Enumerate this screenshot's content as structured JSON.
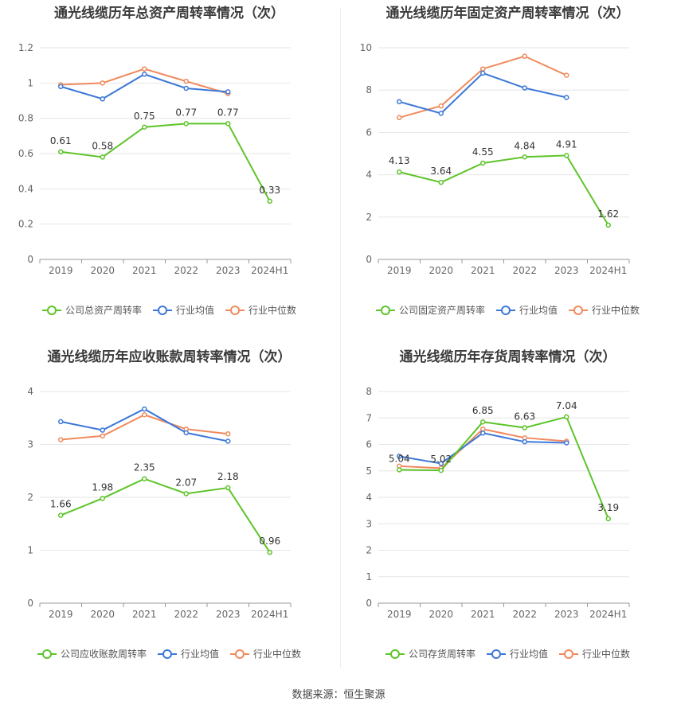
{
  "colors": {
    "company": "#5ec42a",
    "industry_avg": "#3d78d8",
    "industry_median": "#f08a5d",
    "grid": "#e6e6e6",
    "axis": "#999999",
    "label": "#333333"
  },
  "source": "数据来源：恒生聚源",
  "chart_data": [
    {
      "type": "line",
      "title": "通光线缆历年总资产周转率情况（次）",
      "categories": [
        "2019",
        "2020",
        "2021",
        "2022",
        "2023",
        "2024H1"
      ],
      "ylim": [
        0,
        1.2
      ],
      "yticks": [
        "0",
        "0.2",
        "0.4",
        "0.6",
        "0.8",
        "1",
        "1.2"
      ],
      "ytick_values": [
        0,
        0.2,
        0.4,
        0.6,
        0.8,
        1.0,
        1.2
      ],
      "grid": true,
      "legend_position": "bottom",
      "series": [
        {
          "name": "公司总资产周转率",
          "key": "company",
          "values": [
            0.61,
            0.58,
            0.75,
            0.77,
            0.77,
            0.33
          ],
          "labels": [
            "0.61",
            "0.58",
            "0.75",
            "0.77",
            "0.77",
            "0.33"
          ]
        },
        {
          "name": "行业均值",
          "key": "industry_avg",
          "values": [
            0.98,
            0.91,
            1.05,
            0.97,
            0.95,
            null
          ]
        },
        {
          "name": "行业中位数",
          "key": "industry_median",
          "values": [
            0.99,
            1.0,
            1.08,
            1.01,
            0.94,
            null
          ]
        }
      ]
    },
    {
      "type": "line",
      "title": "通光线缆历年固定资产周转率情况（次）",
      "categories": [
        "2019",
        "2020",
        "2021",
        "2022",
        "2023",
        "2024H1"
      ],
      "ylim": [
        0,
        10
      ],
      "yticks": [
        "0",
        "2",
        "4",
        "6",
        "8",
        "10"
      ],
      "ytick_values": [
        0,
        2,
        4,
        6,
        8,
        10
      ],
      "grid": true,
      "legend_position": "bottom",
      "series": [
        {
          "name": "公司固定资产周转率",
          "key": "company",
          "values": [
            4.13,
            3.64,
            4.55,
            4.84,
            4.91,
            1.62
          ],
          "labels": [
            "4.13",
            "3.64",
            "4.55",
            "4.84",
            "4.91",
            "1.62"
          ]
        },
        {
          "name": "行业均值",
          "key": "industry_avg",
          "values": [
            7.45,
            6.9,
            8.8,
            8.1,
            7.65,
            null
          ]
        },
        {
          "name": "行业中位数",
          "key": "industry_median",
          "values": [
            6.7,
            7.25,
            9.0,
            9.6,
            8.7,
            null
          ]
        }
      ]
    },
    {
      "type": "line",
      "title": "通光线缆历年应收账款周转率情况（次）",
      "categories": [
        "2019",
        "2020",
        "2021",
        "2022",
        "2023",
        "2024H1"
      ],
      "ylim": [
        0,
        4
      ],
      "yticks": [
        "0",
        "1",
        "2",
        "3",
        "4"
      ],
      "ytick_values": [
        0,
        1,
        2,
        3,
        4
      ],
      "grid": true,
      "legend_position": "bottom",
      "series": [
        {
          "name": "公司应收账款周转率",
          "key": "company",
          "values": [
            1.66,
            1.98,
            2.35,
            2.07,
            2.18,
            0.96
          ],
          "labels": [
            "1.66",
            "1.98",
            "2.35",
            "2.07",
            "2.18",
            "0.96"
          ]
        },
        {
          "name": "行业均值",
          "key": "industry_avg",
          "values": [
            3.43,
            3.27,
            3.67,
            3.22,
            3.06,
            null
          ]
        },
        {
          "name": "行业中位数",
          "key": "industry_median",
          "values": [
            3.09,
            3.16,
            3.56,
            3.29,
            3.2,
            null
          ]
        }
      ]
    },
    {
      "type": "line",
      "title": "通光线缆历年存货周转率情况（次）",
      "categories": [
        "2019",
        "2020",
        "2021",
        "2022",
        "2023",
        "2024H1"
      ],
      "ylim": [
        0,
        8
      ],
      "yticks": [
        "0",
        "1",
        "2",
        "3",
        "4",
        "5",
        "6",
        "7",
        "8"
      ],
      "ytick_values": [
        0,
        1,
        2,
        3,
        4,
        5,
        6,
        7,
        8
      ],
      "grid": true,
      "legend_position": "bottom",
      "series": [
        {
          "name": "公司存货周转率",
          "key": "company",
          "values": [
            5.04,
            5.02,
            6.85,
            6.63,
            7.04,
            3.19
          ],
          "labels": [
            "5.04",
            "5.02",
            "6.85",
            "6.63",
            "7.04",
            "3.19"
          ]
        },
        {
          "name": "行业均值",
          "key": "industry_avg",
          "values": [
            5.55,
            5.28,
            6.43,
            6.1,
            6.06,
            null
          ]
        },
        {
          "name": "行业中位数",
          "key": "industry_median",
          "values": [
            5.18,
            5.1,
            6.58,
            6.25,
            6.12,
            null
          ]
        }
      ]
    }
  ]
}
